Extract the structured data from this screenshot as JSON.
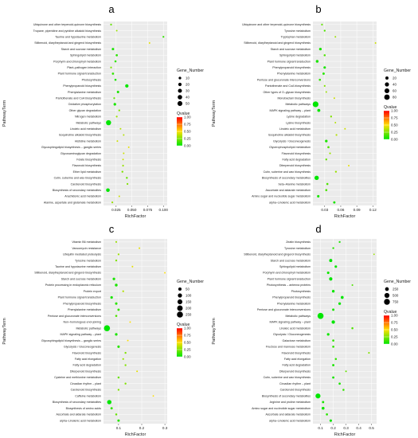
{
  "chart_data": [
    {
      "type": "scatter",
      "panel": "a",
      "xlabel": "RichFactor",
      "ylabel": "PathwayTerm",
      "x_ticks": [
        "0.025",
        "0.050",
        "0.075",
        "0.100"
      ],
      "xlim": [
        0.005,
        0.106
      ],
      "categories": [
        "Ubiquinone and other terpenoid-quinone biosynthesis",
        "Tropane, piperidine and pyridine alkaloid biosynthesis",
        "Taurine and hypotaurine metabolism",
        "Stilbenoid, diarylheptanoid and gingerol biosynthesis",
        "Starch and sucrose metabolism",
        "Sphingolipid metabolism",
        "Porphyrin and chlorophyll metabolism",
        "Plant–pathogen interaction",
        "Plant hormone signal transduction",
        "Photosynthesis",
        "Phenylpropanoid biosynthesis",
        "Phenylalanine metabolism",
        "Pantothenate and CoA biosynthesis",
        "Oxidative phosphorylation",
        "Other glycan degradation",
        "Nitrogen metabolism",
        "Metabolic pathways",
        "Linoleic acid metabolism",
        "Isoquinoline alkaloid biosynthesis",
        "Histidine metabolism",
        "Glycosphingolipid biosynthesis – ganglio series",
        "Glycosaminoglycan degradation",
        "Folate biosynthesis",
        "Flavonoid biosynthesis",
        "Ether lipid metabolism",
        "Cutin, suberine and wax biosynthesis",
        "Carotenoid biosynthesis",
        "Biosynthesis of secondary metabolites",
        "Arachidonic acid metabolism",
        "Alanine, aspartate and glutamate metabolism"
      ],
      "x": [
        0.017,
        0.026,
        0.1,
        0.078,
        0.02,
        0.026,
        0.024,
        0.017,
        0.02,
        0.024,
        0.042,
        0.028,
        0.022,
        0.023,
        0.03,
        0.026,
        0.013,
        0.032,
        0.037,
        0.027,
        0.045,
        0.037,
        0.036,
        0.036,
        0.035,
        0.042,
        0.043,
        0.012,
        0.03,
        0.019
      ],
      "gene_number": [
        3,
        2,
        3,
        2,
        8,
        6,
        5,
        3,
        6,
        5,
        20,
        8,
        3,
        10,
        3,
        3,
        55,
        2,
        2,
        2,
        2,
        2,
        2,
        3,
        4,
        4,
        3,
        25,
        2,
        3
      ],
      "qvalue": [
        0.2,
        0.3,
        0.1,
        0.45,
        0.05,
        0.08,
        0.1,
        0.25,
        0.1,
        0.05,
        0.02,
        0.05,
        0.2,
        0.05,
        0.25,
        0.3,
        0.0,
        0.35,
        0.35,
        0.4,
        0.45,
        0.4,
        0.4,
        0.3,
        0.25,
        0.2,
        0.25,
        0.0,
        0.4,
        0.3
      ],
      "size_legend": {
        "title": "Gene_Number",
        "values": [
          10,
          20,
          30,
          40,
          50
        ],
        "labels": [
          "10",
          "20",
          "30",
          "40",
          "50"
        ]
      },
      "color_legend": {
        "title": "Qvalue",
        "labels": [
          "1.00",
          "0.75",
          "0.50",
          "0.25",
          "0.00"
        ]
      },
      "colors": {
        "low": "#00e600",
        "mid": "#ffe000",
        "high": "#ff0000"
      }
    },
    {
      "type": "scatter",
      "panel": "b",
      "xlabel": "RichFactor",
      "ylabel": "PathwayTerm",
      "x_ticks": [
        "0.03",
        "0.06",
        "0.09",
        "0.12"
      ],
      "xlim": [
        0.008,
        0.127
      ],
      "categories": [
        "Ubiquinone and other terpenoid–quinone biosynthesis",
        "Tyrosine metabolism",
        "Tryptophan metabolism",
        "Stilbenoid, diarylheptanoid and gingerol biosynthesis",
        "Starch and sucrose metabolism",
        "Sphingolipid metabolism",
        "Plant hormone signal transduction",
        "Phenylpropanoid biosynthesis",
        "Phenylalanine metabolism",
        "Pentose and glucuronate interconversions",
        "Pantothenate and CoA biosynthesis",
        "Other types of O–glycan biosynthesis",
        "Monobactam biosynthesis",
        "Metabolic pathways",
        "MAPK signaling pathway – plant",
        "Lysine degradation",
        "Lysine biosynthesis",
        "Linoleic acid metabolism",
        "Isoquinoline alkaloid biosynthesis",
        "Glycolysis / Gluconeogenesis",
        "Glycerophospholipid metabolism",
        "Flavonoid biosynthesis",
        "Fatty acid degradation",
        "Diterpenoid biosynthesis",
        "Cutin, suberine and wax biosynthesis",
        "Biosynthesis of secondary metabolites",
        "beta–Alanine metabolism",
        "Ascorbate and aldarate metabolism",
        "Amino sugar and nucleotide sugar metabolism",
        "alpha–Linolenic acid metabolism"
      ],
      "x": [
        0.025,
        0.03,
        0.05,
        0.125,
        0.022,
        0.03,
        0.016,
        0.03,
        0.028,
        0.021,
        0.03,
        0.033,
        0.048,
        0.013,
        0.019,
        0.042,
        0.05,
        0.068,
        0.052,
        0.033,
        0.037,
        0.04,
        0.033,
        0.075,
        0.051,
        0.015,
        0.035,
        0.033,
        0.018,
        0.048
      ],
      "gene_number": [
        3,
        4,
        2,
        2,
        12,
        5,
        14,
        10,
        8,
        6,
        3,
        2,
        2,
        90,
        18,
        4,
        2,
        2,
        3,
        12,
        6,
        3,
        4,
        2,
        4,
        45,
        6,
        6,
        10,
        8
      ],
      "qvalue": [
        0.2,
        0.15,
        0.3,
        0.4,
        0.05,
        0.15,
        0.05,
        0.05,
        0.08,
        0.1,
        0.25,
        0.3,
        0.4,
        0.0,
        0.02,
        0.25,
        0.35,
        0.4,
        0.35,
        0.05,
        0.15,
        0.3,
        0.2,
        0.45,
        0.3,
        0.0,
        0.15,
        0.15,
        0.05,
        0.05
      ],
      "size_legend": {
        "title": "Gene_Number",
        "values": [
          20,
          40,
          60,
          80
        ],
        "labels": [
          "20",
          "40",
          "60",
          "80"
        ]
      },
      "color_legend": {
        "title": "Qvalue",
        "labels": [
          "1.00",
          "0.75",
          "0.50",
          "0.25",
          "0.00"
        ]
      },
      "colors": {
        "low": "#00e600",
        "mid": "#ffe000",
        "high": "#ff0000"
      }
    },
    {
      "type": "scatter",
      "panel": "c",
      "xlabel": "RichFactor",
      "ylabel": "PathwayTerm",
      "x_ticks": [
        "0.1",
        "0.2",
        "0.3"
      ],
      "xlim": [
        0.035,
        0.31
      ],
      "categories": [
        "Vitamin B6 metabolism",
        "Vancomycin resistance",
        "Ubiquitin mediated proteolysis",
        "Tyrosine metabolism",
        "Taurine and hypotaurine metabolism",
        "Stilbenoid, diarylheptanoid and gingerol biosynthesis",
        "Starch and sucrose metabolism",
        "Protein processing in endoplasmic reticulum",
        "Protein export",
        "Plant hormone signal transduction",
        "Phenylpropanoid biosynthesis",
        "Phenylalanine metabolism",
        "Pentose and glucuronate interconversions",
        "Non–homologous end–joining",
        "Metabolic pathways",
        "MAPK signaling pathway – plant",
        "Glycosphingolipid biosynthesis – ganglio series",
        "Glycolysis / Gluconeogenesis",
        "Flavonoid biosynthesis",
        "Fatty acid elongation",
        "Fatty acid degradation",
        "Diterpenoid biosynthesis",
        "Cysteine and methionine metabolism",
        "Circadian rhythm – plant",
        "Carotenoid biosynthesis",
        "Caffeine metabolism",
        "Biosynthesis of secondary metabolites",
        "Biosynthesis of amino acids",
        "Ascorbate and aldarate metabolism",
        "alpha–Linolenic acid metabolism"
      ],
      "x": [
        0.09,
        0.19,
        0.1,
        0.09,
        0.16,
        0.3,
        0.08,
        0.09,
        0.12,
        0.07,
        0.09,
        0.1,
        0.09,
        0.15,
        0.05,
        0.09,
        0.14,
        0.1,
        0.13,
        0.12,
        0.13,
        0.18,
        0.1,
        0.13,
        0.1,
        0.25,
        0.06,
        0.07,
        0.09,
        0.1
      ],
      "gene_number": [
        5,
        4,
        6,
        8,
        4,
        3,
        25,
        30,
        6,
        25,
        20,
        18,
        12,
        3,
        250,
        25,
        3,
        22,
        8,
        6,
        8,
        4,
        10,
        8,
        8,
        2,
        110,
        18,
        10,
        20
      ],
      "qvalue": [
        0.3,
        0.45,
        0.3,
        0.25,
        0.45,
        0.5,
        0.05,
        0.05,
        0.35,
        0.05,
        0.08,
        0.1,
        0.15,
        0.5,
        0.0,
        0.05,
        0.5,
        0.08,
        0.25,
        0.3,
        0.25,
        0.45,
        0.2,
        0.25,
        0.25,
        0.5,
        0.0,
        0.1,
        0.2,
        0.08
      ],
      "size_legend": {
        "title": "Gene_Number",
        "values": [
          50,
          100,
          150,
          200,
          250
        ],
        "labels": [
          "50",
          "100",
          "150",
          "200",
          "250"
        ]
      },
      "color_legend": {
        "title": "Qvalue",
        "labels": [
          "1.00",
          "0.75",
          "0.50",
          "0.25",
          "0.00"
        ]
      },
      "colors": {
        "low": "#00e600",
        "mid": "#ffe000",
        "high": "#ff0000"
      }
    },
    {
      "type": "scatter",
      "panel": "d",
      "xlabel": "RichFactor",
      "ylabel": "PathwayTerm",
      "x_ticks": [
        "0.1",
        "0.2",
        "0.3",
        "0.4",
        "0.5"
      ],
      "xlim": [
        0.04,
        0.54
      ],
      "categories": [
        "Zeatin biosynthesis",
        "Tyrosine metabolism",
        "Stilbenoid, diarylheptanoid and gingerol biosynthesis",
        "Starch and sucrose metabolism",
        "Sphingolipid metabolism",
        "Porphyrin and chlorophyll metabolism",
        "Plant hormone signal transduction",
        "Photosynthesis – antenna proteins",
        "Photosynthesis",
        "Phenylpropanoid biosynthesis",
        "Phenylalanine metabolism",
        "Pentose and glucuronate interconversions",
        "Metabolic pathways",
        "MAPK signaling pathway – plant",
        "Linoleic acid metabolism",
        "Glycolysis / Gluconeogenesis",
        "Galactose metabolism",
        "Fructose and mannose metabolism",
        "Flavonoid biosynthesis",
        "Fatty acid elongation",
        "Fatty acid degradation",
        "Diterpenoid biosynthesis",
        "Cutin, suberine and wax biosynthesis",
        "Circadian rhythm – plant",
        "Carotenoid biosynthesis",
        "Biosynthesis of secondary metabolites",
        "Arginine and proline metabolism",
        "Amino sugar and nucleotide sugar metabolism",
        "Ascorbate and aldarate metabolism",
        "alpha–Linolenic acid metabolism"
      ],
      "x": [
        0.25,
        0.2,
        0.52,
        0.18,
        0.22,
        0.16,
        0.18,
        0.35,
        0.2,
        0.27,
        0.25,
        0.2,
        0.1,
        0.2,
        0.35,
        0.16,
        0.2,
        0.2,
        0.48,
        0.22,
        0.2,
        0.3,
        0.2,
        0.25,
        0.28,
        0.08,
        0.12,
        0.12,
        0.15,
        0.18
      ],
      "gene_number": [
        30,
        30,
        10,
        150,
        80,
        80,
        180,
        20,
        100,
        120,
        90,
        70,
        800,
        200,
        40,
        90,
        50,
        50,
        20,
        40,
        60,
        20,
        60,
        50,
        40,
        500,
        60,
        120,
        50,
        80
      ],
      "qvalue": [
        0.05,
        0.08,
        0.3,
        0.0,
        0.02,
        0.03,
        0.0,
        0.15,
        0.02,
        0.0,
        0.01,
        0.05,
        0.0,
        0.0,
        0.15,
        0.03,
        0.1,
        0.1,
        0.25,
        0.1,
        0.05,
        0.2,
        0.05,
        0.05,
        0.1,
        0.0,
        0.05,
        0.03,
        0.08,
        0.02
      ],
      "size_legend": {
        "title": "Gene_Number",
        "values": [
          250,
          500,
          750
        ],
        "labels": [
          "250",
          "500",
          "750"
        ]
      },
      "color_legend": {
        "title": "Qvalue",
        "labels": [
          "1.00",
          "0.75",
          "0.50",
          "0.25",
          "0.00"
        ]
      },
      "colors": {
        "low": "#00e600",
        "mid": "#ffe000",
        "high": "#ff0000"
      }
    }
  ]
}
